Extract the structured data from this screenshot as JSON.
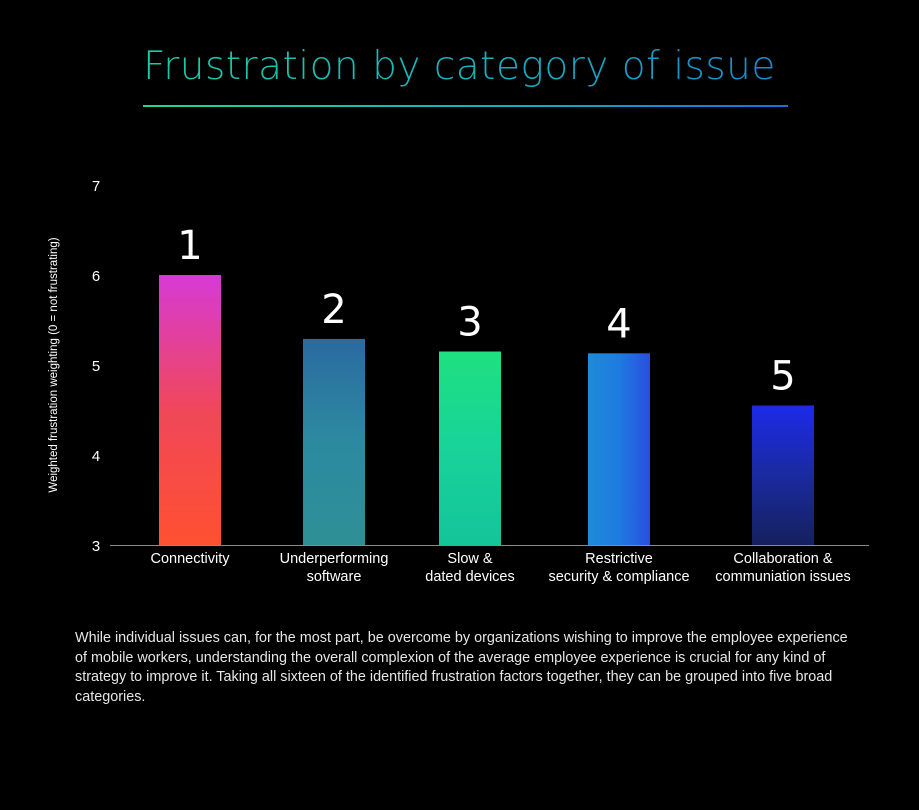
{
  "title": "Frustration by category of issue",
  "note": "While individual issues can, for the most part, be overcome by organizations wishing to improve the employee experience of mobile workers, understanding the overall complexion of the average employee experience is crucial for any kind of strategy to improve it. Taking all sixteen of the identified frustration factors together, they can be grouped into five broad categories.",
  "colors": {
    "background": "#000000",
    "title_gradient": [
      "#1fd69a",
      "#1a78d4"
    ],
    "axis": "#8a8a8a",
    "text": "#ffffff"
  },
  "chart_data": {
    "type": "bar",
    "categories": [
      [
        "Connectivity"
      ],
      [
        "Underperforming",
        "software"
      ],
      [
        "Slow &",
        "dated devices"
      ],
      [
        "Restrictive",
        "security & compliance"
      ],
      [
        "Collaboration &",
        "communiation issues"
      ]
    ],
    "values": [
      6.0,
      5.29,
      5.15,
      5.13,
      4.55
    ],
    "ranks": [
      "1",
      "2",
      "3",
      "4",
      "5"
    ],
    "ylabel": "Weighted frustration weighting (0 = not frustrating)",
    "ylim": [
      3,
      7
    ],
    "yticks": [
      "3",
      "4",
      "5",
      "6",
      "7"
    ],
    "grid": false,
    "bar_gradients": [
      [
        "#d63ad6",
        "#f0475a",
        "#ff5030"
      ],
      [
        "#2a6aa0",
        "#2c8aa0",
        "#2e9096"
      ],
      [
        "#1fe080",
        "#18d39a",
        "#14c49a"
      ],
      [
        "#1f8ad8",
        "#1d7ce0",
        "#2a4ee0"
      ],
      [
        "#1c2ae8",
        "#1a2aa0",
        "#15205e"
      ]
    ]
  }
}
